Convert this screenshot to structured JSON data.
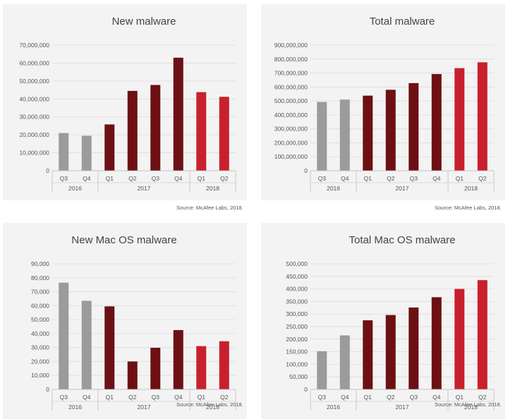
{
  "colors": {
    "2016": "#9b9b9d",
    "2017": "#6c1014",
    "2018": "#c8202d"
  },
  "source_text": "Source: McAfee Labs, 2018.",
  "chart_data": [
    {
      "type": "bar",
      "title": "New malware",
      "categories": [
        "Q3",
        "Q4",
        "Q1",
        "Q2",
        "Q3",
        "Q4",
        "Q1",
        "Q2"
      ],
      "groups": [
        {
          "label": "2016",
          "count": 2
        },
        {
          "label": "2017",
          "count": 4
        },
        {
          "label": "2018",
          "count": 2
        }
      ],
      "values": [
        21000000,
        19500000,
        25800000,
        44500000,
        47800000,
        63000000,
        43800000,
        41200000
      ],
      "ylim": [
        0,
        70000000
      ],
      "yticks": [
        0,
        10000000,
        20000000,
        30000000,
        40000000,
        50000000,
        60000000,
        70000000
      ],
      "ytick_labels": [
        "0",
        "10,000,000",
        "20,000,000",
        "30,000,000",
        "40,000,000",
        "50,000,000",
        "60,000,000",
        "70,000,000"
      ],
      "grid": true
    },
    {
      "type": "bar",
      "title": "Total malware",
      "categories": [
        "Q3",
        "Q4",
        "Q1",
        "Q2",
        "Q3",
        "Q4",
        "Q1",
        "Q2"
      ],
      "groups": [
        {
          "label": "2016",
          "count": 2
        },
        {
          "label": "2017",
          "count": 4
        },
        {
          "label": "2018",
          "count": 2
        }
      ],
      "values": [
        493000000,
        510000000,
        538000000,
        580000000,
        628000000,
        693000000,
        735000000,
        777000000
      ],
      "ylim": [
        0,
        900000000
      ],
      "yticks": [
        0,
        100000000,
        200000000,
        300000000,
        400000000,
        500000000,
        600000000,
        700000000,
        800000000,
        900000000
      ],
      "ytick_labels": [
        "0",
        "100,000,000",
        "200,000,000",
        "300,000,000",
        "400,000,000",
        "500,000,000",
        "600,000,000",
        "700,000,000",
        "800,000,000",
        "900,000,000"
      ],
      "grid": true
    },
    {
      "type": "bar",
      "title": "New Mac OS malware",
      "categories": [
        "Q3",
        "Q4",
        "Q1",
        "Q2",
        "Q3",
        "Q4",
        "Q1",
        "Q2"
      ],
      "groups": [
        {
          "label": "2016",
          "count": 2
        },
        {
          "label": "2017",
          "count": 4
        },
        {
          "label": "2018",
          "count": 2
        }
      ],
      "values": [
        76500,
        63500,
        59500,
        20000,
        29800,
        42500,
        31000,
        34500
      ],
      "ylim": [
        0,
        90000
      ],
      "yticks": [
        0,
        10000,
        20000,
        30000,
        40000,
        50000,
        60000,
        70000,
        80000,
        90000
      ],
      "ytick_labels": [
        "0",
        "10,000",
        "20,000",
        "30,000",
        "40,000",
        "50,000",
        "60,000",
        "70,000",
        "80,000",
        "90,000"
      ],
      "grid": true
    },
    {
      "type": "bar",
      "title": "Total Mac OS malware",
      "categories": [
        "Q3",
        "Q4",
        "Q1",
        "Q2",
        "Q3",
        "Q4",
        "Q1",
        "Q2"
      ],
      "groups": [
        {
          "label": "2016",
          "count": 2
        },
        {
          "label": "2017",
          "count": 4
        },
        {
          "label": "2018",
          "count": 2
        }
      ],
      "values": [
        152000,
        215000,
        275000,
        296000,
        326000,
        367000,
        400000,
        435000
      ],
      "ylim": [
        0,
        500000
      ],
      "yticks": [
        0,
        50000,
        100000,
        150000,
        200000,
        250000,
        300000,
        350000,
        400000,
        450000,
        500000
      ],
      "ytick_labels": [
        "0",
        "50,000",
        "100,000",
        "150,000",
        "200,000",
        "250,000",
        "300,000",
        "350,000",
        "400,000",
        "450,000",
        "500,000"
      ],
      "grid": true
    }
  ]
}
